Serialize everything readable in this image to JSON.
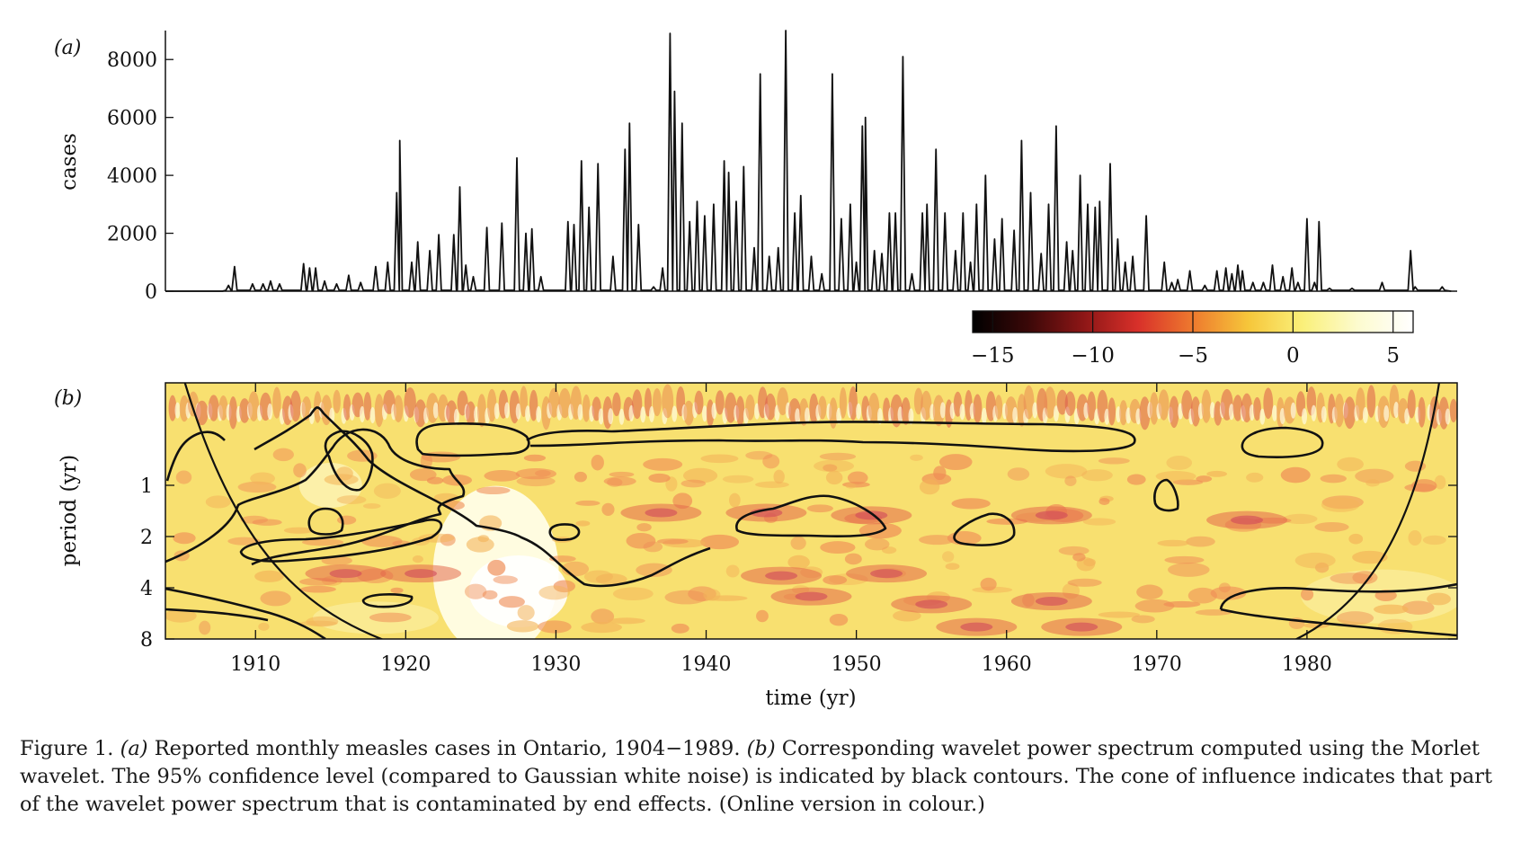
{
  "figure": {
    "caption": {
      "label": "Figure 1.",
      "a_marker": "(a)",
      "a_text": " Reported monthly measles cases in Ontario, 1904−1989. ",
      "b_marker": "(b)",
      "b_text": " Corresponding wavelet power spectrum computed using the Morlet wavelet. The 95% confidence level (compared to Gaussian white noise) is indicated by black contours. The cone of influence indicates that part of the wavelet power spectrum that is contaminated by end effects. (Online version in colour.)"
    }
  },
  "chart_data": [
    {
      "type": "line",
      "panel_label": "(a)",
      "ylabel": "cases",
      "xlabel": "",
      "xlim": [
        1904,
        1990
      ],
      "ylim": [
        0,
        9000
      ],
      "yticks": [
        0,
        2000,
        4000,
        6000,
        8000
      ],
      "ytick_labels": [
        "0",
        "2000",
        "4000",
        "6000",
        "8000"
      ],
      "line_color": "#111111",
      "series": [
        {
          "peaks": [
            [
              1908.2,
              200
            ],
            [
              1908.6,
              850
            ],
            [
              1909.8,
              250
            ],
            [
              1910.5,
              250
            ],
            [
              1911.0,
              350
            ],
            [
              1911.6,
              250
            ],
            [
              1913.2,
              950
            ],
            [
              1913.6,
              800
            ],
            [
              1914.0,
              800
            ],
            [
              1914.6,
              350
            ],
            [
              1915.4,
              250
            ],
            [
              1916.2,
              550
            ],
            [
              1917.0,
              300
            ],
            [
              1918.0,
              850
            ],
            [
              1918.8,
              1000
            ],
            [
              1919.4,
              3400
            ],
            [
              1919.6,
              5200
            ],
            [
              1920.4,
              1000
            ],
            [
              1920.8,
              1700
            ],
            [
              1921.6,
              1400
            ],
            [
              1922.2,
              1950
            ],
            [
              1923.2,
              1950
            ],
            [
              1923.6,
              3600
            ],
            [
              1924.0,
              900
            ],
            [
              1924.5,
              500
            ],
            [
              1925.4,
              2200
            ],
            [
              1926.4,
              2350
            ],
            [
              1927.4,
              4600
            ],
            [
              1928.0,
              2000
            ],
            [
              1928.4,
              2150
            ],
            [
              1929.0,
              500
            ],
            [
              1930.8,
              2400
            ],
            [
              1931.2,
              2300
            ],
            [
              1931.7,
              4500
            ],
            [
              1932.2,
              2900
            ],
            [
              1932.8,
              4400
            ],
            [
              1933.8,
              1200
            ],
            [
              1934.6,
              4900
            ],
            [
              1934.9,
              5800
            ],
            [
              1935.5,
              2300
            ],
            [
              1936.5,
              150
            ],
            [
              1937.1,
              800
            ],
            [
              1937.6,
              8900
            ],
            [
              1937.9,
              6900
            ],
            [
              1938.4,
              5800
            ],
            [
              1938.9,
              2400
            ],
            [
              1939.4,
              3100
            ],
            [
              1939.9,
              2600
            ],
            [
              1940.5,
              3000
            ],
            [
              1941.2,
              4500
            ],
            [
              1941.5,
              4100
            ],
            [
              1942.0,
              3100
            ],
            [
              1942.5,
              4300
            ],
            [
              1943.2,
              1500
            ],
            [
              1943.6,
              7500
            ],
            [
              1944.2,
              1200
            ],
            [
              1944.8,
              1500
            ],
            [
              1945.3,
              9000
            ],
            [
              1945.9,
              2700
            ],
            [
              1946.3,
              3300
            ],
            [
              1947.0,
              1200
            ],
            [
              1947.7,
              600
            ],
            [
              1948.4,
              7500
            ],
            [
              1949.0,
              2500
            ],
            [
              1949.6,
              3000
            ],
            [
              1950.0,
              1000
            ],
            [
              1950.4,
              5700
            ],
            [
              1950.6,
              6000
            ],
            [
              1951.2,
              1400
            ],
            [
              1951.7,
              1300
            ],
            [
              1952.2,
              2700
            ],
            [
              1952.6,
              2700
            ],
            [
              1953.1,
              8100
            ],
            [
              1953.7,
              600
            ],
            [
              1954.4,
              2700
            ],
            [
              1954.7,
              3000
            ],
            [
              1955.3,
              4900
            ],
            [
              1955.9,
              2700
            ],
            [
              1956.6,
              1400
            ],
            [
              1957.1,
              2700
            ],
            [
              1957.6,
              1000
            ],
            [
              1958.0,
              3000
            ],
            [
              1958.6,
              4000
            ],
            [
              1959.2,
              1800
            ],
            [
              1959.7,
              2500
            ],
            [
              1960.5,
              2100
            ],
            [
              1961.0,
              5200
            ],
            [
              1961.6,
              3400
            ],
            [
              1962.3,
              1300
            ],
            [
              1962.8,
              3000
            ],
            [
              1963.3,
              5700
            ],
            [
              1964.0,
              1700
            ],
            [
              1964.4,
              1400
            ],
            [
              1964.9,
              4000
            ],
            [
              1965.4,
              3000
            ],
            [
              1965.9,
              2900
            ],
            [
              1966.2,
              3100
            ],
            [
              1966.9,
              4400
            ],
            [
              1967.4,
              1800
            ],
            [
              1967.9,
              1000
            ],
            [
              1968.4,
              1200
            ],
            [
              1969.3,
              2600
            ],
            [
              1970.5,
              1000
            ],
            [
              1971.0,
              300
            ],
            [
              1971.4,
              400
            ],
            [
              1972.2,
              700
            ],
            [
              1973.2,
              200
            ],
            [
              1974.0,
              700
            ],
            [
              1974.6,
              800
            ],
            [
              1975.0,
              600
            ],
            [
              1975.4,
              900
            ],
            [
              1975.7,
              700
            ],
            [
              1976.4,
              300
            ],
            [
              1977.1,
              300
            ],
            [
              1977.7,
              900
            ],
            [
              1978.4,
              500
            ],
            [
              1979.0,
              800
            ],
            [
              1979.4,
              300
            ],
            [
              1980.0,
              2500
            ],
            [
              1980.5,
              300
            ],
            [
              1980.8,
              2400
            ],
            [
              1981.5,
              100
            ],
            [
              1983.0,
              100
            ],
            [
              1985.0,
              300
            ],
            [
              1986.9,
              1400
            ],
            [
              1987.2,
              150
            ],
            [
              1989.0,
              150
            ]
          ]
        }
      ]
    },
    {
      "type": "heatmap",
      "panel_label": "(b)",
      "xlabel": "time (yr)",
      "ylabel": "period (yr)",
      "xlim": [
        1904,
        1990
      ],
      "xticks": [
        1910,
        1920,
        1930,
        1940,
        1950,
        1960,
        1970,
        1980
      ],
      "xtick_labels": [
        "1910",
        "1920",
        "1930",
        "1940",
        "1950",
        "1960",
        "1970",
        "1980"
      ],
      "ylim": [
        0.25,
        8
      ],
      "y_scale": "log2",
      "yticks": [
        1,
        2,
        4,
        8
      ],
      "ytick_labels": [
        "1",
        "2",
        "4",
        "8"
      ],
      "colorbar": {
        "ticks": [
          -15,
          -10,
          -5,
          0,
          5
        ],
        "tick_labels": [
          "−15",
          "−10",
          "−5",
          "0",
          "5"
        ],
        "range": [
          -16,
          6
        ],
        "colors": [
          "#000000",
          "#3a0808",
          "#8c1616",
          "#d8302a",
          "#ee7a2e",
          "#f6c63a",
          "#faf07a",
          "#fdfbcf",
          "#ffffff"
        ]
      },
      "contour_color": "#111111",
      "contour_label": "95% confidence level",
      "cone_of_influence": true
    }
  ]
}
